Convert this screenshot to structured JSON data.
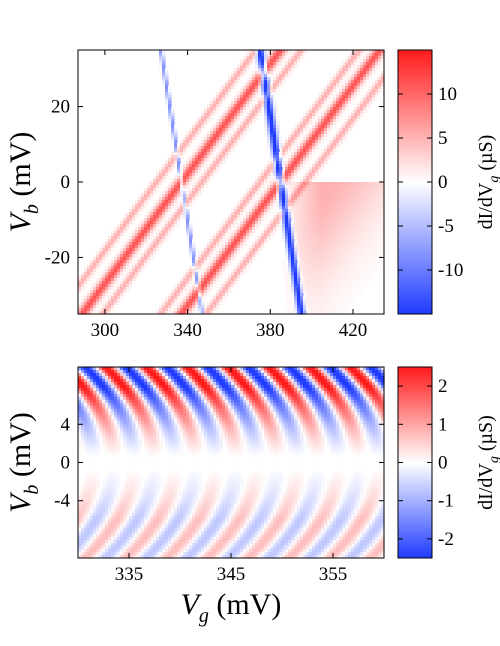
{
  "chart_data": [
    {
      "type": "heatmap",
      "panel": "top",
      "xlabel": "",
      "ylabel": {
        "main": "V",
        "sub": "b",
        "unit": " (mV)"
      },
      "x_ticks": [
        "300",
        "340",
        "380",
        "420"
      ],
      "x_tick_values": [
        300,
        340,
        380,
        420
      ],
      "xlim": [
        287,
        435
      ],
      "y_ticks": [
        "20",
        "0",
        "-20"
      ],
      "y_tick_values": [
        20,
        0,
        -20
      ],
      "ylim": [
        -35,
        35
      ],
      "colorbar": {
        "label": {
          "main": "dI/dV",
          "sub": "g",
          "unit": " (µS)"
        },
        "ticks": [
          "10",
          "5",
          "0",
          "-5",
          "-10"
        ],
        "tick_values": [
          10,
          5,
          0,
          -5,
          -10
        ],
        "range": [
          -15,
          15
        ]
      },
      "colormap": {
        "low": "#1f3bff",
        "mid": "#ffffff",
        "high": "#ff1a1a"
      },
      "features": {
        "degeneracy_points_mV": [
          337,
          385
        ],
        "diamond_edges": [
          {
            "kind": "positive",
            "points": [
              [
                287,
                -35
              ],
              [
                337,
                0
              ],
              [
                385,
                35
              ]
            ]
          },
          {
            "kind": "positive",
            "points": [
              [
                337,
                0
              ],
              [
                385,
                0
              ],
              [
                435,
                35
              ]
            ]
          },
          {
            "kind": "negative",
            "points": [
              [
                337,
                0
              ],
              [
                327,
                35
              ]
            ]
          },
          {
            "kind": "negative",
            "points": [
              [
                385,
                0
              ],
              [
                375,
                35
              ]
            ]
          }
        ]
      }
    },
    {
      "type": "heatmap",
      "panel": "bottom",
      "xlabel": {
        "main": "V",
        "sub": "g",
        "unit": " (mV)"
      },
      "ylabel": {
        "main": "V",
        "sub": "b",
        "unit": " (mV)"
      },
      "x_ticks": [
        "335",
        "345",
        "355"
      ],
      "x_tick_values": [
        335,
        345,
        355
      ],
      "xlim": [
        330,
        360
      ],
      "y_ticks": [
        "4",
        "0",
        "-4"
      ],
      "y_tick_values": [
        4,
        0,
        -4
      ],
      "ylim": [
        -10,
        10
      ],
      "colorbar": {
        "label": {
          "main": "dI/dV",
          "sub": "g",
          "unit": " (µS)"
        },
        "ticks": [
          "2",
          "1",
          "0",
          "-1",
          "-2"
        ],
        "tick_values": [
          2,
          1,
          0,
          -1,
          -2
        ],
        "range": [
          -2.5,
          2.5
        ]
      },
      "colormap": {
        "low": "#1f3bff",
        "mid": "#ffffff",
        "high": "#ff1a1a"
      },
      "features": {
        "oscillation_period_mV": 4.0,
        "amplitude_top_uS": 2.2,
        "amplitude_bottom_uS": 0.8
      }
    }
  ]
}
